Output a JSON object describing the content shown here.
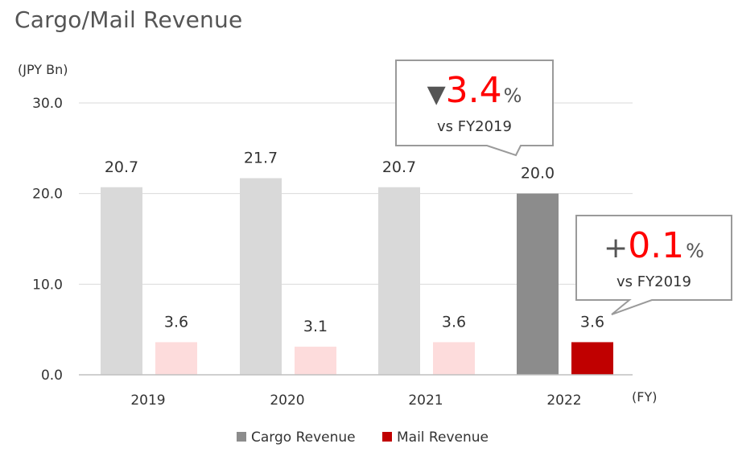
{
  "title": "Cargo/Mail Revenue",
  "colors": {
    "grid": "#d9d9d9",
    "axis": "#bfbfbf",
    "cargo_light": "#d9d9d9",
    "cargo_highlight": "#8c8c8c",
    "mail_light": "#fddcdc",
    "mail_highlight": "#c00000",
    "callout_red": "#ff0000"
  },
  "chart_data": {
    "type": "bar",
    "ylabel": "(JPY Bn)",
    "xlabel": "(FY)",
    "ylim": [
      0,
      30
    ],
    "y_ticks": [
      "0.0",
      "10.0",
      "20.0",
      "30.0"
    ],
    "categories": [
      "2019",
      "2020",
      "2021",
      "2022"
    ],
    "grid": true,
    "legend_position": "bottom",
    "series": [
      {
        "name": "Cargo Revenue",
        "values": [
          20.7,
          21.7,
          20.7,
          20.0
        ],
        "labels": [
          "20.7",
          "21.7",
          "20.7",
          "20.0"
        ]
      },
      {
        "name": "Mail Revenue",
        "values": [
          3.6,
          3.1,
          3.6,
          3.6
        ],
        "labels": [
          "3.6",
          "3.1",
          "3.6",
          "3.6"
        ]
      }
    ],
    "annotations": [
      {
        "series": "Cargo Revenue",
        "category": "2022",
        "prefix": "▼",
        "value": "3.4",
        "unit": "%",
        "note": "vs FY2019"
      },
      {
        "series": "Mail Revenue",
        "category": "2022",
        "prefix": "+",
        "value": "0.1",
        "unit": "%",
        "note": "vs FY2019"
      }
    ]
  }
}
